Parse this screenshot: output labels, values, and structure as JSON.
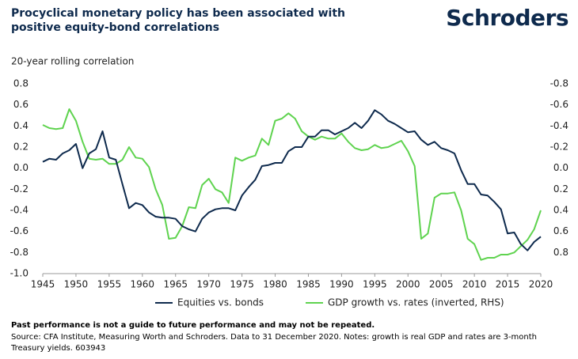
{
  "chart_data": {
    "type": "line",
    "title": "Procyclical monetary policy has been associated with positive equity-bond correlations",
    "brand": "Schroders",
    "y_label": "20-year rolling correlation",
    "x": [
      1945,
      1946,
      1947,
      1948,
      1949,
      1950,
      1951,
      1952,
      1953,
      1954,
      1955,
      1956,
      1957,
      1958,
      1959,
      1960,
      1961,
      1962,
      1963,
      1964,
      1965,
      1966,
      1967,
      1968,
      1969,
      1970,
      1971,
      1972,
      1973,
      1974,
      1975,
      1976,
      1977,
      1978,
      1979,
      1980,
      1981,
      1982,
      1983,
      1984,
      1985,
      1986,
      1987,
      1988,
      1989,
      1990,
      1991,
      1992,
      1993,
      1994,
      1995,
      1996,
      1997,
      1998,
      1999,
      2000,
      2001,
      2002,
      2003,
      2004,
      2005,
      2006,
      2007,
      2008,
      2009,
      2010,
      2011,
      2012,
      2013,
      2014,
      2015,
      2016,
      2017,
      2018,
      2019,
      2020
    ],
    "xlim": [
      1945,
      2020
    ],
    "xticks": [
      1945,
      1950,
      1955,
      1960,
      1965,
      1970,
      1975,
      1980,
      1985,
      1990,
      1995,
      2000,
      2005,
      2010,
      2015,
      2020
    ],
    "ylim": [
      -1.0,
      0.8
    ],
    "yticks": [
      0.8,
      0.6,
      0.4,
      0.2,
      {
        "value": 0,
        "label": "0.0"
      },
      -0.2,
      -0.4,
      -0.6,
      -0.8,
      {
        "value": -1.0,
        "label": "-1.0"
      }
    ],
    "y2lim": [
      1.0,
      -0.8
    ],
    "y2ticks": [
      -0.8,
      -0.6,
      -0.4,
      -0.2,
      {
        "value": 0,
        "label": "0.0"
      },
      0.2,
      0.4,
      0.6,
      0.8
    ],
    "series": [
      {
        "name": "Equities vs. bonds",
        "color": "#0e2a4d",
        "values": [
          0.06,
          0.09,
          0.08,
          0.14,
          0.17,
          0.23,
          0.0,
          0.14,
          0.18,
          0.35,
          0.1,
          0.08,
          -0.15,
          -0.38,
          -0.33,
          -0.35,
          -0.42,
          -0.46,
          -0.47,
          -0.47,
          -0.48,
          -0.55,
          -0.58,
          -0.6,
          -0.48,
          -0.42,
          -0.39,
          -0.38,
          -0.38,
          -0.4,
          -0.26,
          -0.18,
          -0.11,
          0.02,
          0.03,
          0.05,
          0.05,
          0.16,
          0.2,
          0.2,
          0.3,
          0.3,
          0.36,
          0.36,
          0.32,
          0.35,
          0.38,
          0.43,
          0.38,
          0.45,
          0.55,
          0.51,
          0.45,
          0.42,
          0.38,
          0.34,
          0.35,
          0.27,
          0.22,
          0.25,
          0.19,
          0.17,
          0.14,
          -0.02,
          -0.15,
          -0.15,
          -0.25,
          -0.26,
          -0.32,
          -0.39,
          -0.62,
          -0.61,
          -0.72,
          -0.78,
          -0.7,
          -0.65
        ]
      },
      {
        "name": "GDP growth vs. rates (inverted, RHS)",
        "color": "#5fd34f",
        "axis": "y2",
        "values": [
          -0.41,
          -0.38,
          -0.37,
          -0.38,
          -0.56,
          -0.45,
          -0.25,
          -0.09,
          -0.08,
          -0.09,
          -0.04,
          -0.04,
          -0.08,
          -0.2,
          -0.1,
          -0.09,
          -0.01,
          0.2,
          0.35,
          0.67,
          0.66,
          0.55,
          0.37,
          0.38,
          0.16,
          0.1,
          0.2,
          0.23,
          0.33,
          -0.1,
          -0.07,
          -0.1,
          -0.12,
          -0.28,
          -0.22,
          -0.45,
          -0.47,
          -0.52,
          -0.47,
          -0.35,
          -0.3,
          -0.27,
          -0.3,
          -0.28,
          -0.28,
          -0.33,
          -0.25,
          -0.19,
          -0.17,
          -0.18,
          -0.22,
          -0.19,
          -0.2,
          -0.23,
          -0.26,
          -0.16,
          -0.02,
          0.67,
          0.62,
          0.28,
          0.24,
          0.24,
          0.23,
          0.4,
          0.67,
          0.72,
          0.87,
          0.85,
          0.85,
          0.82,
          0.82,
          0.8,
          0.74,
          0.68,
          0.58,
          0.4
        ]
      }
    ],
    "notes": [
      "Past performance is not a guide to future performance and may not be repeated.",
      "Source: CFA Institute, Measuring Worth and Schroders. Data to 31 December 2020. Notes: growth is real GDP and rates are 3-month Treasury yields. 603943"
    ]
  }
}
